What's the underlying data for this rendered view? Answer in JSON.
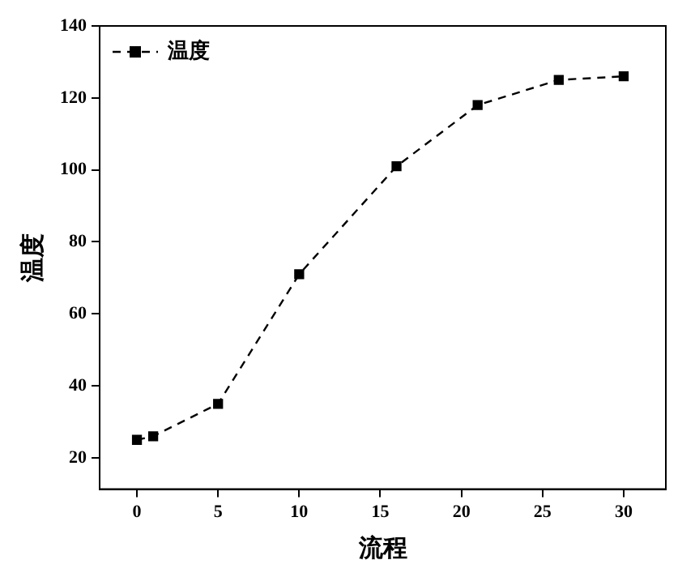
{
  "chart_data": {
    "type": "line",
    "xlabel": "流程",
    "ylabel": "温度",
    "x": [
      0,
      1,
      5,
      10,
      16,
      21,
      26,
      30
    ],
    "series": [
      {
        "name": "温度",
        "color": "#000000",
        "values": [
          25,
          26,
          35,
          71,
          101,
          118,
          125,
          126
        ]
      }
    ],
    "xlim": [
      -2.3,
      32.6
    ],
    "ylim": [
      11.3,
      140
    ],
    "xticks": [
      0,
      5,
      10,
      15,
      20,
      25,
      30
    ],
    "yticks": [
      20,
      40,
      60,
      80,
      100,
      120,
      140
    ],
    "legend": "top left",
    "marker": "square",
    "line_style": "dashed"
  }
}
